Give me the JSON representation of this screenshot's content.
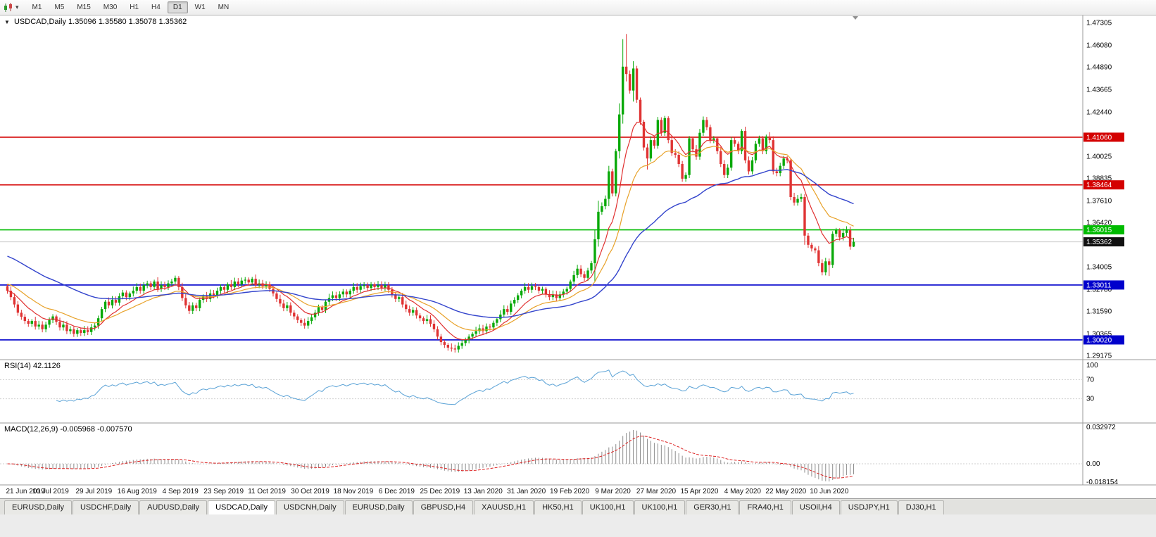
{
  "toolbar": {
    "timeframes": [
      "M1",
      "M5",
      "M15",
      "M30",
      "H1",
      "H4",
      "D1",
      "W1",
      "MN"
    ],
    "active": "D1"
  },
  "header": {
    "symbol_period": "USDCAD,Daily",
    "ohlc_text": "1.35096 1.35580 1.35078 1.35362"
  },
  "indicators": {
    "rsi": {
      "label": "RSI(14)",
      "value": "42.1126",
      "levels": [
        "100",
        "70",
        "30"
      ]
    },
    "macd": {
      "label": "MACD(12,26,9)",
      "values": "-0.005968 -0.007570",
      "axis_labels": [
        "0.032972",
        "0.00",
        "-0.018154"
      ]
    }
  },
  "price_axis": {
    "ticks": [
      "1.47305",
      "1.46080",
      "1.44890",
      "1.43665",
      "1.42440",
      "1.40025",
      "1.38835",
      "1.37610",
      "1.36420",
      "1.34005",
      "1.32780",
      "1.31590",
      "1.30365",
      "1.29175"
    ]
  },
  "levels": [
    {
      "label": "1.41060",
      "price": 1.4106,
      "color": "red"
    },
    {
      "label": "1.38464",
      "price": 1.38464,
      "color": "red"
    },
    {
      "label": "1.36015",
      "price": 1.36015,
      "color": "green"
    },
    {
      "label": "1.33011",
      "price": 1.33011,
      "color": "blue"
    },
    {
      "label": "1.30020",
      "price": 1.3002,
      "color": "blue"
    }
  ],
  "current": {
    "label": "1.35362",
    "price": 1.35362
  },
  "tabs": {
    "items": [
      "EURUSD,Daily",
      "USDCHF,Daily",
      "AUDUSD,Daily",
      "USDCAD,Daily",
      "USDCNH,Daily",
      "EURUSD,Daily",
      "GBPUSD,H4",
      "XAUUSD,H1",
      "HK50,H1",
      "UK100,H1",
      "UK100,H1",
      "GER30,H1",
      "FRA40,H1",
      "USOil,H4",
      "USDJPY,H1",
      "DJ30,H1"
    ],
    "active_index": 3
  },
  "colors": {
    "up_candle": "#09a909",
    "down_candle": "#df3333",
    "ma_fast": "#e03030",
    "ma_mid": "#e8a22a",
    "ma_slow": "#3344cc",
    "rsi_line": "#5aa2d6",
    "macd_hist": "#8c8c8c",
    "macd_signal": "#dd2222",
    "level_red": "#d40000",
    "level_green": "#00bb00",
    "level_blue": "#0000cc",
    "current_badge": "#111111",
    "current_line": "#c9c9c9"
  },
  "chart_data": {
    "type": "candlestick",
    "symbol": "USDCAD",
    "period": "Daily",
    "last_ohlc": [
      1.35096,
      1.3558,
      1.35078,
      1.35362
    ],
    "ylim": [
      1.289,
      1.477
    ],
    "x_labels": [
      "21 Jun 2019",
      "10 Jul 2019",
      "29 Jul 2019",
      "16 Aug 2019",
      "4 Sep 2019",
      "23 Sep 2019",
      "11 Oct 2019",
      "30 Oct 2019",
      "18 Nov 2019",
      "6 Dec 2019",
      "25 Dec 2019",
      "13 Jan 2020",
      "31 Jan 2020",
      "19 Feb 2020",
      "9 Mar 2020",
      "27 Mar 2020",
      "15 Apr 2020",
      "4 May 2020",
      "22 May 2020",
      "10 Jun 2020"
    ],
    "closes": [
      1.327,
      1.3235,
      1.3195,
      1.315,
      1.3128,
      1.3105,
      1.309,
      1.3105,
      1.3075,
      1.3085,
      1.306,
      1.3085,
      1.311,
      1.313,
      1.31,
      1.307,
      1.3085,
      1.305,
      1.306,
      1.3035,
      1.3055,
      1.304,
      1.3055,
      1.3045,
      1.307,
      1.308,
      1.312,
      1.317,
      1.321,
      1.319,
      1.322,
      1.3205,
      1.324,
      1.326,
      1.3235,
      1.3255,
      1.327,
      1.329,
      1.327,
      1.33,
      1.331,
      1.329,
      1.332,
      1.328,
      1.33,
      1.329,
      1.331,
      1.332,
      1.334,
      1.329,
      1.323,
      1.319,
      1.316,
      1.319,
      1.3175,
      1.322,
      1.324,
      1.3225,
      1.3255,
      1.3245,
      1.327,
      1.329,
      1.3275,
      1.3305,
      1.329,
      1.332,
      1.3305,
      1.3325,
      1.333,
      1.3315,
      1.3335,
      1.33,
      1.331,
      1.3295,
      1.3305,
      1.328,
      1.3255,
      1.3225,
      1.32,
      1.3175,
      1.319,
      1.315,
      1.313,
      1.311,
      1.3095,
      1.308,
      1.3105,
      1.3125,
      1.315,
      1.318,
      1.3165,
      1.321,
      1.323,
      1.3245,
      1.323,
      1.325,
      1.3265,
      1.325,
      1.327,
      1.329,
      1.3275,
      1.3295,
      1.33,
      1.3285,
      1.3305,
      1.329,
      1.33,
      1.3285,
      1.33,
      1.3275,
      1.325,
      1.3225,
      1.3235,
      1.3195,
      1.317,
      1.315,
      1.3165,
      1.3135,
      1.312,
      1.3105,
      1.3115,
      1.309,
      1.306,
      1.302,
      1.299,
      1.2975,
      1.296,
      1.2955,
      1.295,
      1.297,
      1.2985,
      1.3,
      1.302,
      1.3035,
      1.305,
      1.3065,
      1.305,
      1.3075,
      1.307,
      1.3095,
      1.3115,
      1.314,
      1.317,
      1.3155,
      1.32,
      1.322,
      1.3245,
      1.327,
      1.329,
      1.3275,
      1.3295,
      1.329,
      1.327,
      1.328,
      1.325,
      1.3235,
      1.325,
      1.323,
      1.325,
      1.3265,
      1.328,
      1.332,
      1.3355,
      1.339,
      1.336,
      1.334,
      1.338,
      1.342,
      1.355,
      1.37,
      1.373,
      1.377,
      1.392,
      1.38,
      1.403,
      1.423,
      1.449,
      1.445,
      1.436,
      1.448,
      1.431,
      1.419,
      1.405,
      1.399,
      1.409,
      1.406,
      1.42,
      1.413,
      1.421,
      1.409,
      1.402,
      1.401,
      1.396,
      1.388,
      1.39,
      1.41,
      1.404,
      1.4,
      1.413,
      1.42,
      1.416,
      1.409,
      1.41,
      1.403,
      1.396,
      1.39,
      1.394,
      1.409,
      1.407,
      1.403,
      1.414,
      1.398,
      1.392,
      1.398,
      1.407,
      1.41,
      1.403,
      1.411,
      1.409,
      1.392,
      1.391,
      1.395,
      1.399,
      1.398,
      1.378,
      1.375,
      1.377,
      1.378,
      1.357,
      1.352,
      1.35,
      1.349,
      1.342,
      1.337,
      1.343,
      1.341,
      1.358,
      1.36,
      1.356,
      1.3585,
      1.36,
      1.351,
      1.35362
    ],
    "wick_overrides": {
      "168": [
        0.005,
        0.01
      ],
      "169": [
        0.006,
        0.004
      ],
      "172": [
        0.003,
        0.004
      ],
      "175": [
        0.006,
        0.004
      ],
      "176": [
        0.015,
        0.005
      ],
      "177": [
        0.0178,
        0.004
      ],
      "179": [
        0.004,
        0.006
      ],
      "183": [
        0.002,
        0.006
      ],
      "228": [
        0.0015,
        0.005
      ],
      "235": [
        0.0015,
        0.006
      ],
      "242": [
        0.0022,
        0.0002
      ]
    }
  }
}
